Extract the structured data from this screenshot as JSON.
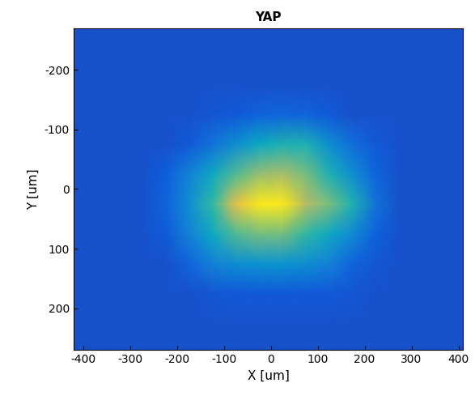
{
  "chart_data": {
    "type": "heatmap",
    "title": "YAP",
    "x_label": "X [um]",
    "y_label": "Y [um]",
    "x": [
      -425,
      -375,
      -325,
      -275,
      -225,
      -175,
      -125,
      -75,
      -25,
      25,
      75,
      125,
      175,
      225,
      275,
      325,
      375,
      425
    ],
    "y": [
      -275,
      -225,
      -175,
      -125,
      -75,
      -25,
      25,
      75,
      125,
      175,
      225,
      275
    ],
    "cells": [
      [
        0.1,
        0.1,
        0.1,
        0.1,
        0.1,
        0.1,
        0.1,
        0.1,
        0.1,
        0.1,
        0.1,
        0.1,
        0.1,
        0.1,
        0.1,
        0.1,
        0.1,
        0.1
      ],
      [
        0.1,
        0.1,
        0.1,
        0.1,
        0.1,
        0.1,
        0.1,
        0.1,
        0.1,
        0.1,
        0.1,
        0.1,
        0.1,
        0.1,
        0.1,
        0.1,
        0.1,
        0.1
      ],
      [
        0.1,
        0.1,
        0.1,
        0.1,
        0.1,
        0.1,
        0.1,
        0.1,
        0.1,
        0.1,
        0.1,
        0.1,
        0.1,
        0.1,
        0.1,
        0.1,
        0.1,
        0.1
      ],
      [
        0.1,
        0.1,
        0.1,
        0.1,
        0.1,
        0.1,
        0.11,
        0.12,
        0.15,
        0.16,
        0.15,
        0.12,
        0.1,
        0.1,
        0.1,
        0.1,
        0.1,
        0.1
      ],
      [
        0.1,
        0.1,
        0.1,
        0.1,
        0.1,
        0.12,
        0.2,
        0.3,
        0.4,
        0.45,
        0.45,
        0.3,
        0.18,
        0.12,
        0.1,
        0.1,
        0.1,
        0.1
      ],
      [
        0.1,
        0.1,
        0.1,
        0.1,
        0.13,
        0.25,
        0.4,
        0.55,
        0.65,
        0.68,
        0.6,
        0.45,
        0.3,
        0.15,
        0.1,
        0.1,
        0.1,
        0.1
      ],
      [
        0.1,
        0.1,
        0.1,
        0.1,
        0.15,
        0.3,
        0.5,
        0.8,
        0.95,
        0.95,
        0.7,
        0.6,
        0.45,
        0.2,
        0.1,
        0.1,
        0.1,
        0.1
      ],
      [
        0.1,
        0.1,
        0.1,
        0.1,
        0.12,
        0.25,
        0.4,
        0.55,
        0.6,
        0.6,
        0.5,
        0.4,
        0.28,
        0.14,
        0.1,
        0.1,
        0.1,
        0.1
      ],
      [
        0.1,
        0.1,
        0.1,
        0.1,
        0.1,
        0.15,
        0.25,
        0.3,
        0.32,
        0.32,
        0.3,
        0.25,
        0.15,
        0.11,
        0.1,
        0.1,
        0.1,
        0.1
      ],
      [
        0.1,
        0.1,
        0.1,
        0.1,
        0.1,
        0.1,
        0.11,
        0.12,
        0.12,
        0.12,
        0.12,
        0.12,
        0.11,
        0.1,
        0.1,
        0.1,
        0.1,
        0.1
      ],
      [
        0.1,
        0.1,
        0.1,
        0.1,
        0.1,
        0.1,
        0.1,
        0.1,
        0.1,
        0.1,
        0.1,
        0.1,
        0.1,
        0.1,
        0.1,
        0.1,
        0.1,
        0.1
      ],
      [
        0.1,
        0.1,
        0.1,
        0.1,
        0.1,
        0.1,
        0.1,
        0.1,
        0.1,
        0.1,
        0.1,
        0.1,
        0.1,
        0.1,
        0.1,
        0.1,
        0.1,
        0.1
      ]
    ],
    "zlim": [
      0,
      1
    ],
    "xlim": [
      -420,
      410
    ],
    "ylim": [
      270,
      -270
    ],
    "xticks": [
      -400,
      -300,
      -200,
      -100,
      0,
      100,
      200,
      300,
      400
    ],
    "yticks": [
      -200,
      -100,
      0,
      100,
      200
    ]
  }
}
